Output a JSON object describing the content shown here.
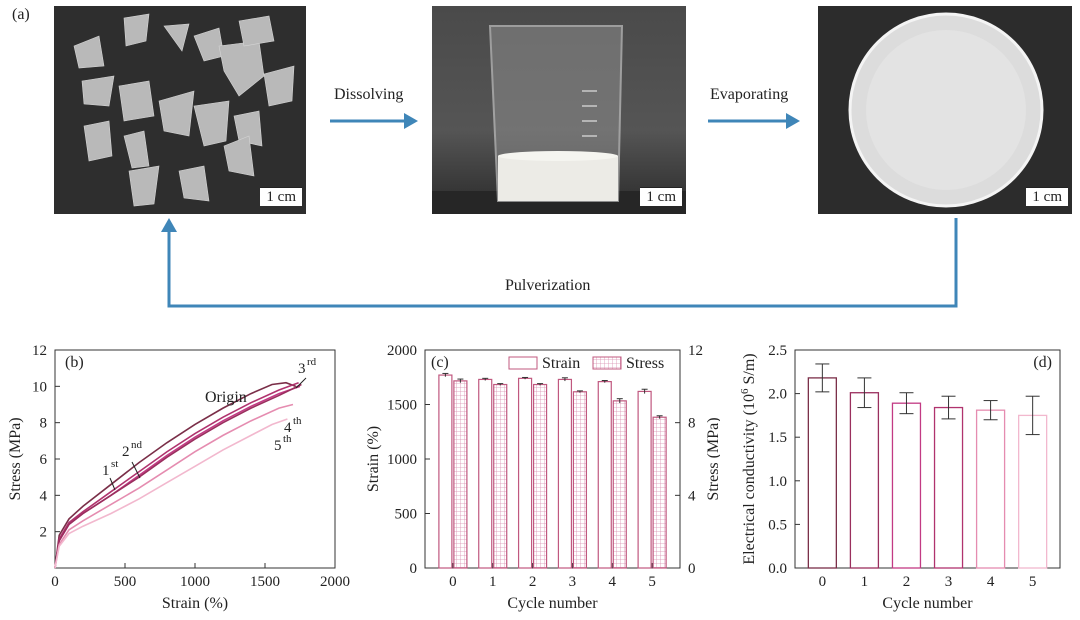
{
  "panel_a": {
    "label": "(a)",
    "steps": [
      "Dissolving",
      "Evaporating",
      "Pulverization"
    ],
    "scale_bars": [
      "1 cm",
      "1 cm",
      "1 cm"
    ]
  },
  "colors": {
    "arrow": "#3f86b8",
    "origin": "#7a2e48",
    "cycle1": "#b0336e",
    "cycle2": "#c23a84",
    "cycle3": "#9a2f5e",
    "cycle4": "#e58cb0",
    "cycle5": "#f2b8ce",
    "bar_edge": "#c0587f"
  },
  "chart_data": [
    {
      "panel": "(b)",
      "type": "line",
      "xlabel": "Strain (%)",
      "ylabel": "Stress (MPa)",
      "xlim": [
        0,
        2000
      ],
      "ylim": [
        0,
        12
      ],
      "xticks": [
        0,
        500,
        1000,
        1500,
        2000
      ],
      "yticks": [
        2,
        4,
        6,
        8,
        10,
        12
      ],
      "annotations": [
        "Origin",
        "1",
        "st",
        "2",
        "nd",
        "3",
        "rd",
        "4",
        "th",
        "5",
        "th"
      ],
      "series": [
        {
          "key": "origin",
          "x": [
            0,
            30,
            100,
            200,
            400,
            600,
            800,
            1000,
            1200,
            1400,
            1550,
            1650,
            1720
          ],
          "y": [
            0,
            1.8,
            2.7,
            3.4,
            4.6,
            5.8,
            6.9,
            7.9,
            8.8,
            9.6,
            10.1,
            10.2,
            10.0
          ]
        },
        {
          "key": "cycle1",
          "x": [
            0,
            30,
            100,
            200,
            400,
            600,
            800,
            1000,
            1200,
            1400,
            1600,
            1740
          ],
          "y": [
            0,
            1.6,
            2.5,
            3.1,
            4.2,
            5.3,
            6.4,
            7.4,
            8.3,
            9.1,
            9.8,
            10.2
          ]
        },
        {
          "key": "cycle2",
          "x": [
            0,
            30,
            100,
            200,
            400,
            600,
            800,
            1000,
            1200,
            1400,
            1600,
            1750
          ],
          "y": [
            0,
            1.5,
            2.4,
            3.0,
            4.0,
            5.1,
            6.2,
            7.2,
            8.1,
            8.9,
            9.6,
            10.0
          ]
        },
        {
          "key": "cycle3",
          "x": [
            0,
            30,
            100,
            200,
            400,
            600,
            800,
            1000,
            1200,
            1400,
            1600,
            1760
          ],
          "y": [
            0,
            1.5,
            2.4,
            3.0,
            4.0,
            5.0,
            6.1,
            7.1,
            8.0,
            8.8,
            9.5,
            10.1
          ]
        },
        {
          "key": "cycle4",
          "x": [
            0,
            30,
            100,
            200,
            400,
            600,
            800,
            1000,
            1200,
            1400,
            1600,
            1700
          ],
          "y": [
            0,
            1.3,
            2.1,
            2.6,
            3.5,
            4.4,
            5.4,
            6.4,
            7.3,
            8.1,
            8.8,
            9.0
          ]
        },
        {
          "key": "cycle5",
          "x": [
            0,
            30,
            100,
            200,
            400,
            600,
            800,
            1000,
            1200,
            1400,
            1550,
            1660
          ],
          "y": [
            0,
            1.2,
            1.9,
            2.3,
            3.0,
            3.8,
            4.7,
            5.6,
            6.5,
            7.3,
            7.9,
            8.2
          ]
        }
      ]
    },
    {
      "panel": "(c)",
      "type": "bar",
      "xlabel": "Cycle number",
      "ylabel": "Strain (%)",
      "ylabel_right": "Stress (MPa)",
      "categories": [
        "0",
        "1",
        "2",
        "3",
        "4",
        "5"
      ],
      "ylim": [
        0,
        2000
      ],
      "ylim_right": [
        0,
        12
      ],
      "yticks": [
        0,
        500,
        1000,
        1500,
        2000
      ],
      "yticks_right": [
        0,
        4,
        8,
        12
      ],
      "series": [
        {
          "name": "Strain",
          "values": [
            1770,
            1730,
            1740,
            1730,
            1710,
            1620
          ],
          "errors": [
            15,
            10,
            8,
            15,
            10,
            20
          ]
        },
        {
          "name": "Stress",
          "values": [
            10.3,
            10.1,
            10.1,
            9.7,
            9.2,
            8.3
          ],
          "errors": [
            0.1,
            0.05,
            0.05,
            0.05,
            0.12,
            0.08
          ]
        }
      ]
    },
    {
      "panel": "(d)",
      "type": "bar",
      "xlabel": "Cycle number",
      "ylabel": "Electrical conductivity (10",
      "ylabel_sup": "6",
      "ylabel_tail": " S/m)",
      "categories": [
        "0",
        "1",
        "2",
        "3",
        "4",
        "5"
      ],
      "ylim": [
        0,
        2.5
      ],
      "yticks": [
        0,
        0.5,
        1.0,
        1.5,
        2.0,
        2.5
      ],
      "values": [
        2.18,
        2.01,
        1.89,
        1.84,
        1.81,
        1.75
      ],
      "errors": [
        0.16,
        0.17,
        0.12,
        0.13,
        0.11,
        0.22
      ]
    }
  ]
}
